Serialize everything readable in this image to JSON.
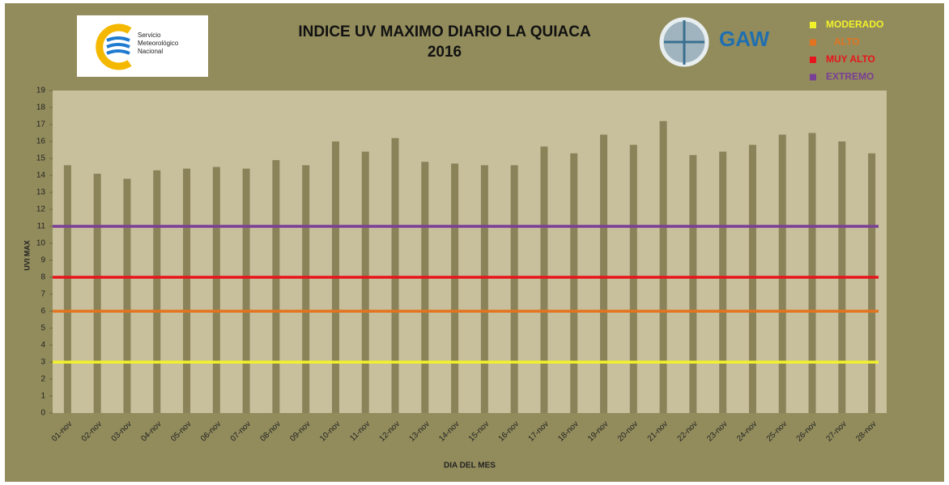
{
  "chart_data": {
    "type": "bar",
    "title": [
      "INDICE UV MAXIMO DIARIO LA QUIACA",
      "2016"
    ],
    "logo_text": [
      "Servicio",
      "Meteorológico",
      "Nacional"
    ],
    "gaw_label": "GAW",
    "y_label": "UVI MAX",
    "x_label": "DIA DEL MES",
    "categories": [
      "01-nov",
      "02-nov",
      "03-nov",
      "04-nov",
      "05-nov",
      "06-nov",
      "07-nov",
      "08-nov",
      "09-nov",
      "10-nov",
      "11-nov",
      "12-nov",
      "13-nov",
      "14-nov",
      "15-nov",
      "16-nov",
      "17-nov",
      "18-nov",
      "19-nov",
      "20-nov",
      "21-nov",
      "22-nov",
      "23-nov",
      "24-nov",
      "25-nov",
      "26-nov",
      "27-nov",
      "28-nov"
    ],
    "values": [
      14.6,
      14.1,
      13.8,
      14.3,
      14.4,
      14.5,
      14.4,
      14.9,
      14.6,
      16.0,
      15.4,
      16.2,
      14.8,
      14.7,
      14.6,
      14.6,
      15.7,
      15.3,
      16.4,
      15.8,
      17.2,
      15.2,
      15.4,
      15.8,
      16.4,
      16.5,
      16.0,
      15.3
    ],
    "color": "#8a8359",
    "reference_lines": [
      {
        "name": "MODERADO",
        "color": "#f2f22a",
        "value": 3
      },
      {
        "name": "ALTO",
        "color": "#e3741f",
        "value": 6
      },
      {
        "name": "MUY ALTO",
        "color": "#e8141b",
        "value": 8
      },
      {
        "name": "EXTREMO",
        "color": "#7a3f96",
        "value": 11
      }
    ],
    "ylim": [
      0,
      19
    ],
    "yticks": [
      0,
      1,
      2,
      3,
      4,
      5,
      6,
      7,
      8,
      9,
      10,
      11,
      12,
      13,
      14,
      15,
      16,
      17,
      18,
      19
    ],
    "legend": "top-right"
  }
}
